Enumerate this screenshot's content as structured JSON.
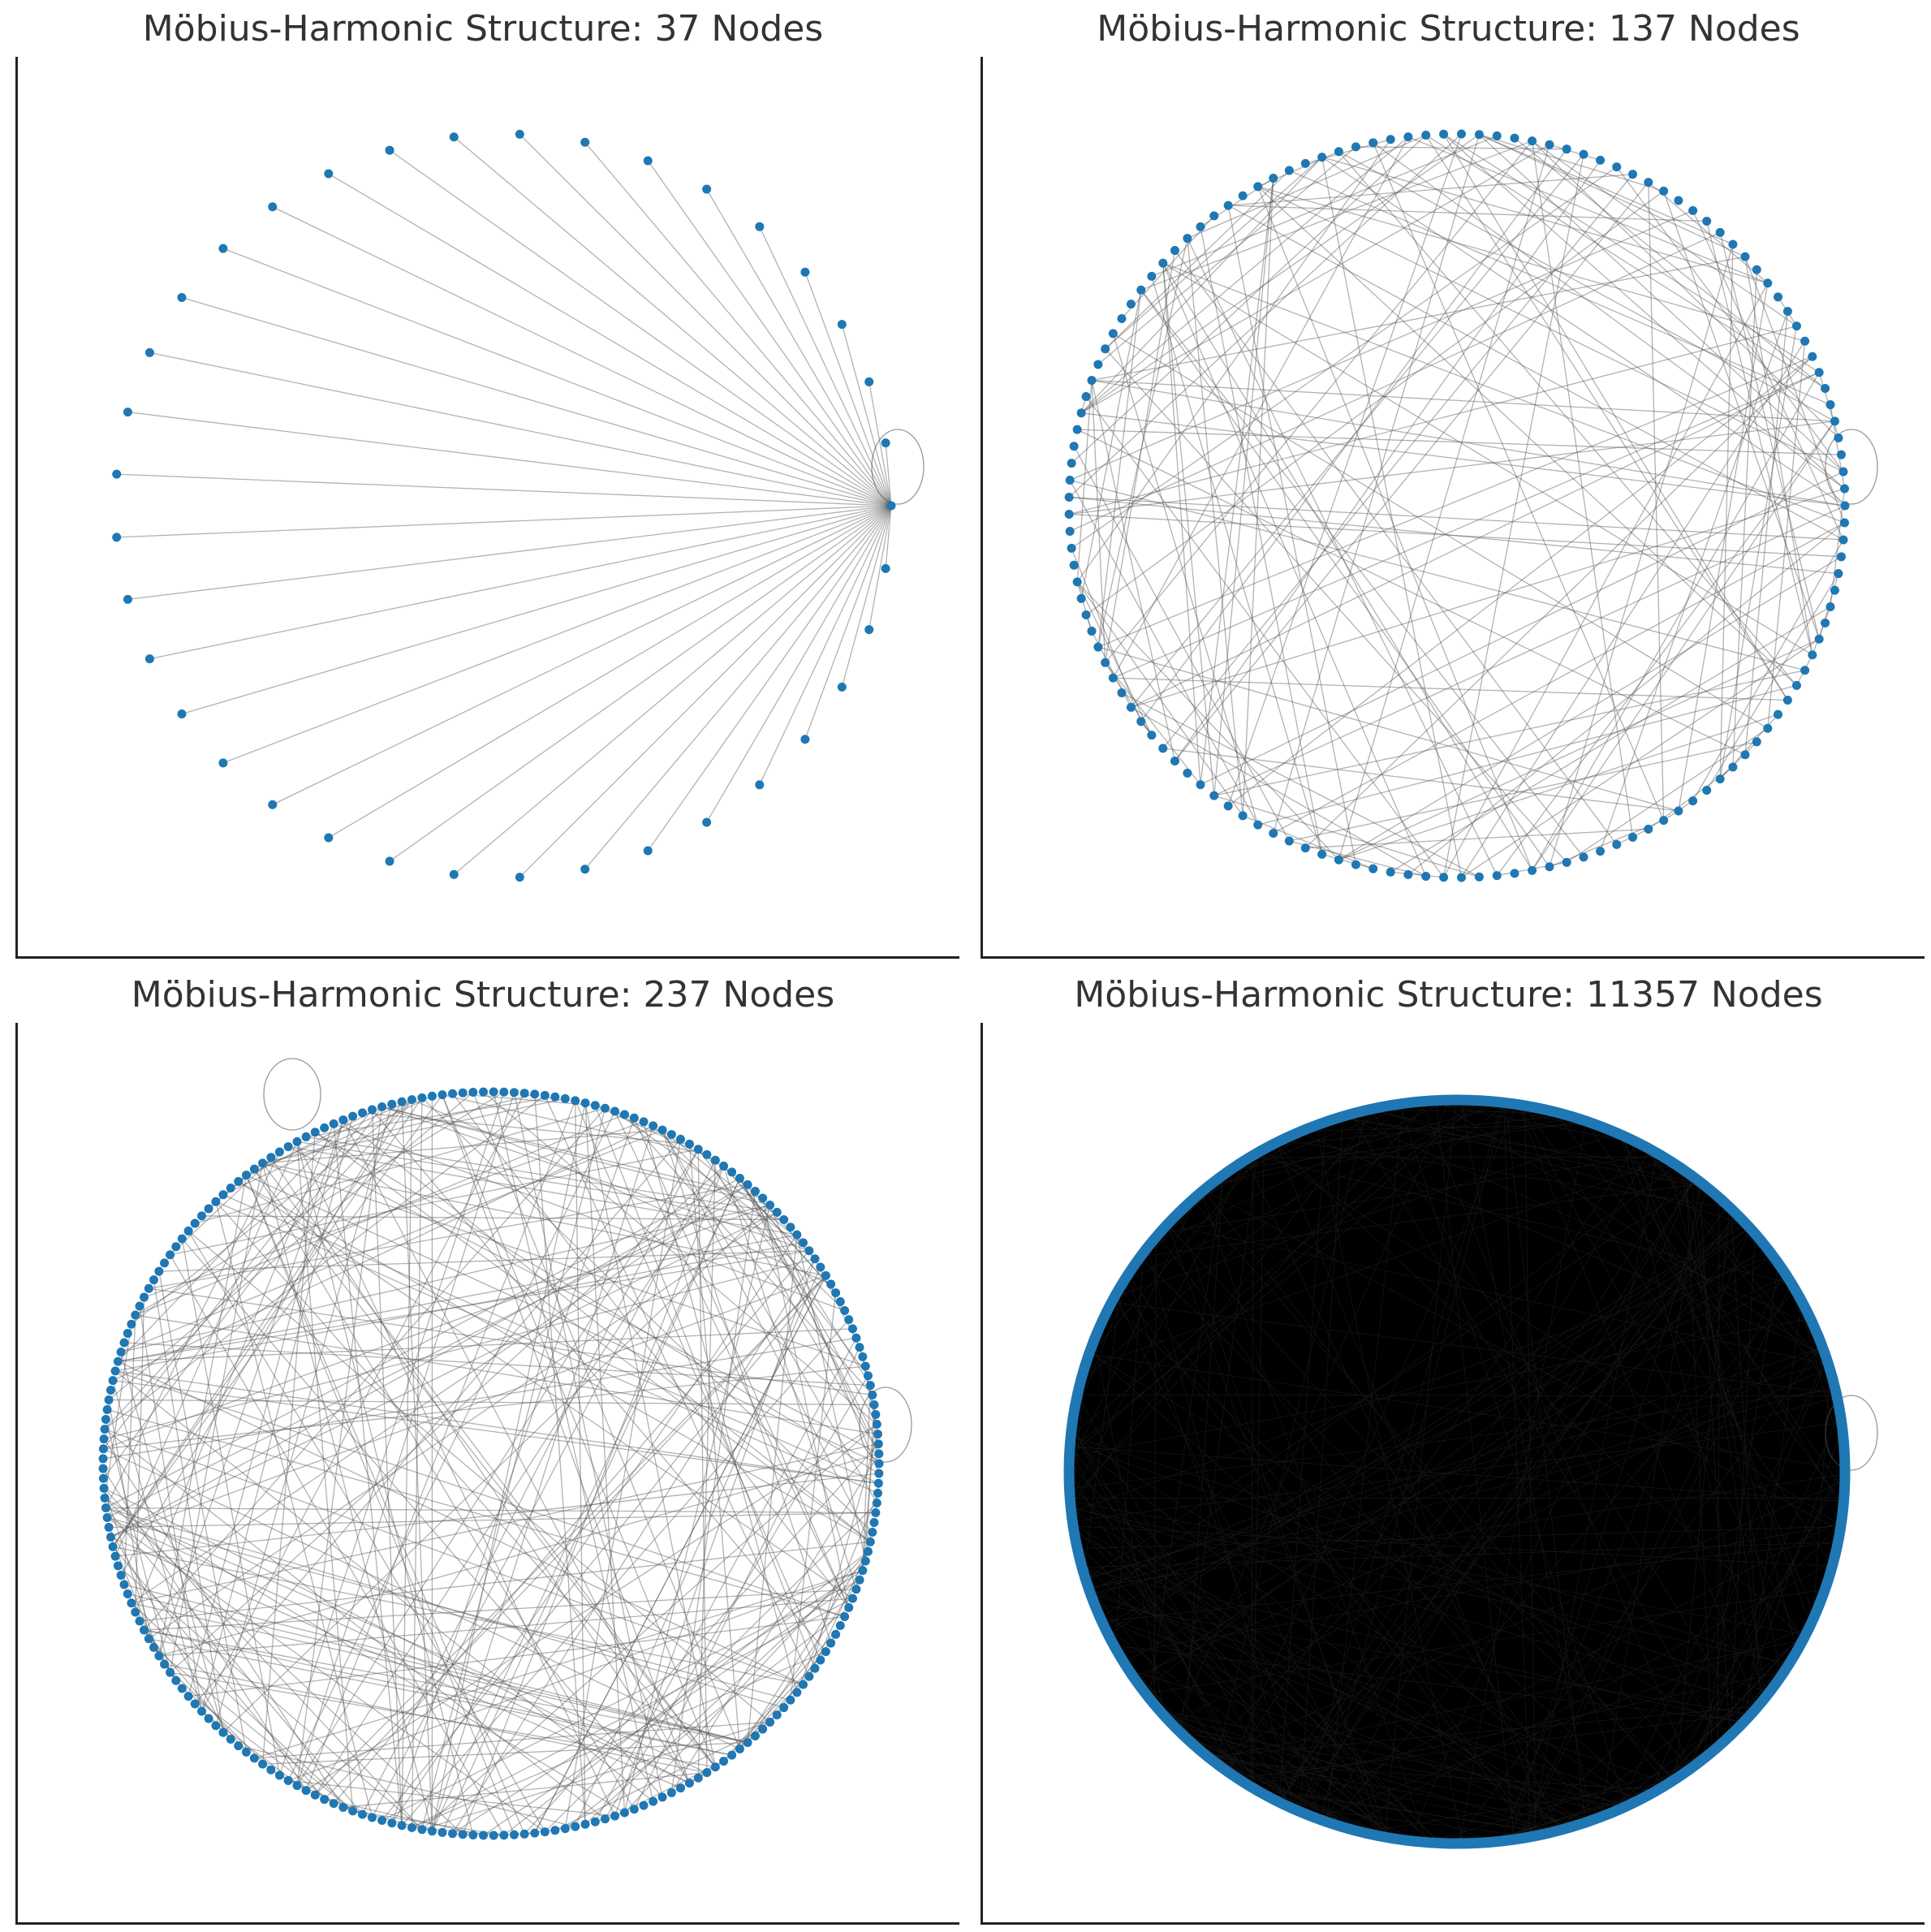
{
  "figure": {
    "panels": [
      {
        "title": "Möbius-Harmonic Structure: 37 Nodes",
        "node_count": 37,
        "pattern": "fan",
        "loops": [
          "right"
        ]
      },
      {
        "title": "Möbius-Harmonic Structure: 137 Nodes",
        "node_count": 137,
        "pattern": "random",
        "loops": [
          "right"
        ]
      },
      {
        "title": "Möbius-Harmonic Structure: 237 Nodes",
        "node_count": 237,
        "pattern": "random",
        "loops": [
          "top-left",
          "right"
        ]
      },
      {
        "title": "Möbius-Harmonic Structure: 11357 Nodes",
        "node_count": 11357,
        "pattern": "dense",
        "loops": [
          "right"
        ]
      }
    ],
    "colors": {
      "node": "#1f77b4",
      "edge": "#555555",
      "frame": "#222222",
      "title": "#333333"
    }
  }
}
